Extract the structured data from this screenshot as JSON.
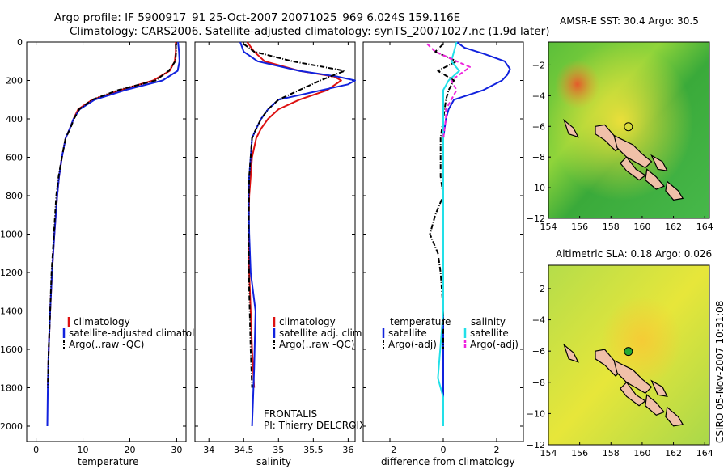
{
  "header": {
    "line1": "Argo profile: IF 5900917_91 25-Oct-2007 20071025_969 6.024S 159.116E",
    "line2": "Climatology: CARS2006. Satellite-adjusted climatology: synTS_20071027.nc (1.9d later)"
  },
  "side_stamp": "CSIRO 05-Nov-2007 10:31:08",
  "colors": {
    "red": "#dd1111",
    "blue": "#1122dd",
    "black": "#000000",
    "cyan": "#22e0e8",
    "magenta": "#ee22dd"
  },
  "chart_data": [
    {
      "type": "line",
      "id": "temperature",
      "xlabel": "temperature",
      "ylabel": "",
      "xlim": [
        -2,
        32
      ],
      "ylim": [
        2080,
        0
      ],
      "xticks": [
        0,
        10,
        20,
        30
      ],
      "yticks": [
        0,
        200,
        400,
        600,
        800,
        1000,
        1200,
        1400,
        1600,
        1800,
        2000
      ],
      "legend": {
        "position": "lower-right",
        "entries": [
          "climatology",
          "satellite-adjusted climatology",
          "Argo(..raw -QC)"
        ]
      },
      "series": [
        {
          "name": "climatology",
          "color": "red",
          "dash": "solid",
          "x": [
            29.8,
            29.8,
            29.6,
            28.5,
            25,
            18,
            12,
            9,
            8,
            7.2,
            6.3,
            5.5,
            4.9,
            4.5,
            3.9,
            3.4,
            3,
            2.7,
            2.5
          ],
          "y": [
            0,
            50,
            100,
            150,
            200,
            250,
            300,
            350,
            400,
            450,
            500,
            600,
            700,
            800,
            1000,
            1200,
            1400,
            1600,
            1800
          ]
        },
        {
          "name": "satellite-adjusted climatology",
          "color": "blue",
          "dash": "solid",
          "x": [
            30.3,
            30.5,
            30.6,
            30.2,
            27,
            19,
            12.5,
            9.3,
            8,
            7.2,
            6.3,
            5.5,
            4.9,
            4.5,
            3.9,
            3.4,
            3,
            2.7,
            2.5,
            2.4
          ],
          "y": [
            0,
            50,
            100,
            150,
            200,
            250,
            300,
            350,
            400,
            450,
            500,
            600,
            700,
            800,
            1000,
            1200,
            1400,
            1600,
            1800,
            2000
          ]
        },
        {
          "name": "Argo(..raw -QC)",
          "color": "black",
          "dash": "dashdot",
          "x": [
            29.8,
            29.9,
            29.7,
            28.3,
            25.5,
            17.5,
            12,
            9.2,
            8.1,
            7.3,
            6.3,
            5.5,
            4.8,
            4.3,
            3.8,
            3.3,
            3,
            2.7,
            2.5
          ],
          "y": [
            10,
            50,
            100,
            150,
            200,
            250,
            300,
            350,
            400,
            450,
            500,
            600,
            700,
            800,
            1000,
            1200,
            1400,
            1600,
            1800
          ]
        }
      ]
    },
    {
      "type": "line",
      "id": "salinity",
      "xlabel": "salinity",
      "ylabel": "",
      "xlim": [
        33.8,
        36.1
      ],
      "ylim": [
        2080,
        0
      ],
      "xticks": [
        34,
        34.5,
        35,
        35.5,
        36
      ],
      "xticklabels": [
        "34",
        "34.5",
        "35",
        "35.5",
        "36"
      ],
      "legend": {
        "position": "lower-right",
        "entries": [
          "climatology",
          "satellite adj. clim.",
          "Argo(..raw -QC)"
        ]
      },
      "annotation": {
        "line1": "FRONTALIS",
        "line2": "PI: Thierry DELCROIX"
      },
      "series": [
        {
          "name": "climatology",
          "color": "red",
          "dash": "solid",
          "x": [
            34.55,
            34.65,
            34.8,
            35.3,
            35.8,
            35.9,
            35.7,
            35.3,
            35.0,
            34.85,
            34.75,
            34.68,
            34.62,
            34.6,
            34.58,
            34.57,
            34.58,
            34.6,
            34.62,
            34.65
          ],
          "y": [
            0,
            50,
            100,
            150,
            180,
            200,
            250,
            300,
            350,
            400,
            450,
            500,
            600,
            700,
            800,
            1000,
            1200,
            1400,
            1600,
            1800
          ]
        },
        {
          "name": "satellite adj. clim.",
          "color": "blue",
          "dash": "solid",
          "x": [
            34.45,
            34.5,
            34.7,
            35.3,
            35.85,
            36.1,
            36.0,
            35.5,
            35.0,
            34.85,
            34.75,
            34.68,
            34.62,
            34.6,
            34.58,
            34.57,
            34.58,
            34.6,
            34.67,
            34.65,
            34.63,
            34.62
          ],
          "y": [
            0,
            50,
            100,
            150,
            180,
            200,
            220,
            260,
            300,
            350,
            400,
            450,
            500,
            600,
            700,
            800,
            1000,
            1200,
            1400,
            1700,
            1900,
            2000
          ]
        },
        {
          "name": "Argo(..raw -QC)",
          "color": "black",
          "dash": "dashdot",
          "x": [
            34.5,
            34.65,
            35.2,
            35.95,
            35.6,
            35.3,
            35.0,
            34.85,
            34.75,
            34.68,
            34.62,
            34.58,
            34.57,
            34.58,
            34.6,
            34.62
          ],
          "y": [
            10,
            50,
            100,
            150,
            200,
            250,
            300,
            350,
            400,
            450,
            500,
            700,
            1000,
            1300,
            1600,
            1800
          ]
        }
      ]
    },
    {
      "type": "line",
      "id": "difference",
      "xlabel": "difference from climatology",
      "ylabel": "",
      "xlim": [
        -3,
        3
      ],
      "ylim": [
        2080,
        0
      ],
      "xticks": [
        -2,
        0,
        2
      ],
      "legend": {
        "position": "lower-center",
        "groups": [
          "temperature",
          "salinity"
        ],
        "entries": [
          "satellite",
          "Argo(-adj)",
          "satellite",
          "Argo(-adj)"
        ]
      },
      "series": [
        {
          "name": "temperature satellite",
          "color": "blue",
          "dash": "solid",
          "x": [
            0.5,
            0.8,
            1.5,
            2.3,
            2.5,
            2.4,
            2.2,
            1.5,
            0.4,
            0.2,
            0.1,
            0.0,
            0.0,
            0.0,
            0.0,
            0.0,
            0.0,
            0.0,
            0.0
          ],
          "y": [
            0,
            30,
            60,
            100,
            140,
            170,
            200,
            250,
            300,
            350,
            400,
            500,
            800,
            1000,
            1200,
            1400,
            1600,
            1800,
            2000
          ]
        },
        {
          "name": "temperature Argo(-adj)",
          "color": "black",
          "dash": "dashdot",
          "x": [
            0.0,
            -0.3,
            0.5,
            -0.2,
            0.4,
            0.2,
            0.1,
            0.0,
            -0.1,
            -0.1,
            0.0,
            -0.3,
            -0.5,
            -0.2,
            -0.1,
            0.0,
            0.0
          ],
          "y": [
            10,
            50,
            100,
            150,
            200,
            250,
            300,
            400,
            500,
            700,
            800,
            900,
            1000,
            1100,
            1200,
            1400,
            1600
          ]
        },
        {
          "name": "salinity satellite",
          "color": "cyan",
          "dash": "solid",
          "x": [
            0.5,
            0.4,
            0.3,
            0.6,
            0.2,
            0.0,
            0.0,
            0.0,
            0.0,
            0.0,
            0.0,
            0.0,
            0.0,
            -0.2,
            0.0,
            0.0
          ],
          "y": [
            0,
            50,
            100,
            150,
            200,
            250,
            300,
            400,
            600,
            800,
            1000,
            1200,
            1400,
            1750,
            1850,
            2000
          ]
        },
        {
          "name": "salinity Argo(-adj)",
          "color": "magenta",
          "dash": "dashed",
          "x": [
            -0.6,
            -0.3,
            0.5,
            1.0,
            0.7,
            0.3,
            0.5,
            0.3,
            0.1,
            0.1,
            0.0
          ],
          "y": [
            10,
            50,
            100,
            130,
            160,
            200,
            250,
            300,
            350,
            400,
            500
          ]
        }
      ]
    },
    {
      "type": "heatmap",
      "id": "sst",
      "title": "AMSR-E SST: 30.4 Argo: 30.5",
      "xlim": [
        154,
        164.3
      ],
      "ylim": [
        -12,
        -0.5
      ],
      "xticks": [
        154,
        156,
        158,
        160,
        162,
        164
      ],
      "yticks": [
        -2,
        -4,
        -6,
        -8,
        -10,
        -12
      ],
      "marker": {
        "lon": 159.116,
        "lat": -6.024,
        "style": "open-circle"
      },
      "color_range": "yellow-green-orange"
    },
    {
      "type": "heatmap",
      "id": "sla",
      "title": "Altimetric SLA: 0.18 Argo: 0.026",
      "xlim": [
        154,
        164.3
      ],
      "ylim": [
        -12,
        -0.5
      ],
      "xticks": [
        154,
        156,
        158,
        160,
        162,
        164
      ],
      "yticks": [
        -2,
        -4,
        -6,
        -8,
        -10,
        -12
      ],
      "marker": {
        "lon": 159.116,
        "lat": -6.024,
        "style": "filled-green-circle"
      },
      "color_range": "yellow-green"
    }
  ]
}
